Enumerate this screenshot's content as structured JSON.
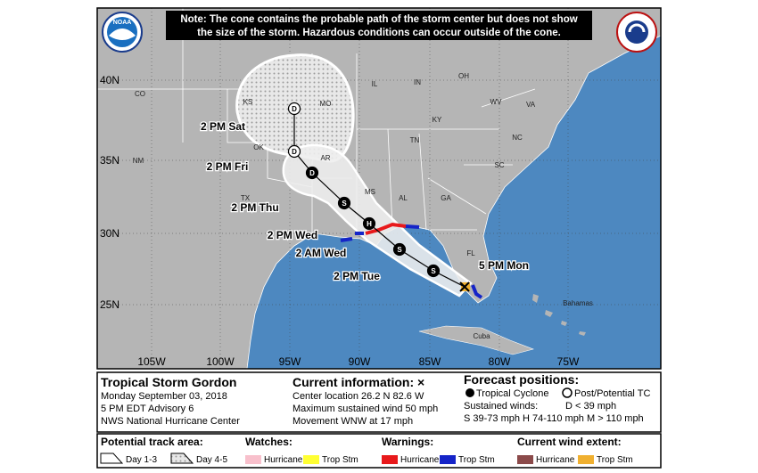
{
  "note": [
    "Note: The cone contains the probable path of the storm center but does not show",
    "the size of the storm. Hazardous conditions can occur outside of the cone."
  ],
  "logos": [
    "NOAA"
  ],
  "map": {
    "latitudes": [
      "40N",
      "35N",
      "30N",
      "25N"
    ],
    "longitudes": [
      "105W",
      "100W",
      "95W",
      "90W",
      "85W",
      "80W",
      "75W"
    ],
    "places": [
      "CO",
      "KS",
      "MO",
      "IL",
      "IN",
      "OH",
      "KY",
      "WV",
      "VA",
      "TN",
      "NC",
      "SC",
      "OK",
      "AR",
      "NM",
      "TX",
      "MS",
      "AL",
      "GA",
      "FL",
      "Bahamas",
      "Cuba"
    ],
    "track_labels": [
      "2 PM Sat",
      "2 PM Fri",
      "2 PM Thu",
      "2 PM Wed",
      "2 AM Wed",
      "2 PM Tue",
      "5 PM Mon"
    ],
    "markers": [
      "D",
      "D",
      "D",
      "S",
      "H",
      "S",
      "S"
    ]
  },
  "storm": {
    "name": "Tropical Storm Gordon",
    "date": "Monday September 03, 2018",
    "advisory": "5 PM EDT Advisory 6",
    "center": "NWS National Hurricane Center"
  },
  "current": {
    "title": "Current information: ×",
    "location": "Center location 26.2 N 82.6 W",
    "wind": "Maximum sustained wind 50 mph",
    "movement": "Movement WNW at 17 mph"
  },
  "forecast": {
    "title": "Forecast positions:",
    "tropical": "Tropical Cyclone",
    "post": "Post/Potential TC",
    "winds_title": "Sustained winds:",
    "depression": "D < 39 mph",
    "classes": "S 39-73 mph  H 74-110 mph  M > 110 mph"
  },
  "legend": {
    "track_title": "Potential track area:",
    "day13": "Day 1-3",
    "day45": "Day 4-5",
    "watches": "Watches:",
    "watch_items": [
      "Hurricane",
      "Trop Stm"
    ],
    "warnings": "Warnings:",
    "warning_items": [
      "Hurricane",
      "Trop Stm"
    ],
    "wind_extent": "Current wind extent:",
    "wind_items": [
      "Hurricane",
      "Trop Stm"
    ]
  }
}
